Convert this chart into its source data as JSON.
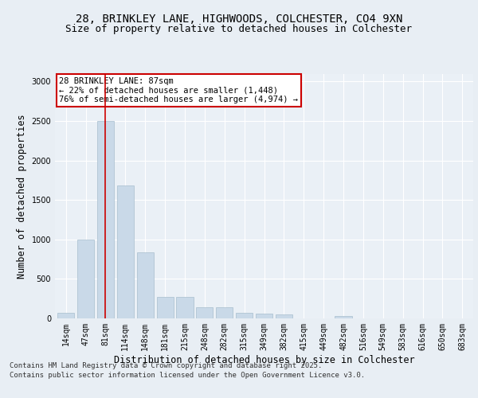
{
  "title_line1": "28, BRINKLEY LANE, HIGHWOODS, COLCHESTER, CO4 9XN",
  "title_line2": "Size of property relative to detached houses in Colchester",
  "xlabel": "Distribution of detached houses by size in Colchester",
  "ylabel": "Number of detached properties",
  "categories": [
    "14sqm",
    "47sqm",
    "81sqm",
    "114sqm",
    "148sqm",
    "181sqm",
    "215sqm",
    "248sqm",
    "282sqm",
    "315sqm",
    "349sqm",
    "382sqm",
    "415sqm",
    "449sqm",
    "482sqm",
    "516sqm",
    "549sqm",
    "583sqm",
    "616sqm",
    "650sqm",
    "683sqm"
  ],
  "values": [
    70,
    1000,
    2500,
    1680,
    840,
    270,
    270,
    140,
    140,
    75,
    60,
    50,
    0,
    0,
    30,
    0,
    0,
    0,
    0,
    0,
    0
  ],
  "bar_color": "#c9d9e8",
  "bar_edgecolor": "#a8bece",
  "vline_x_index": 2,
  "vline_color": "#cc0000",
  "annotation_text": "28 BRINKLEY LANE: 87sqm\n← 22% of detached houses are smaller (1,448)\n76% of semi-detached houses are larger (4,974) →",
  "annotation_box_color": "#ffffff",
  "annotation_box_edgecolor": "#cc0000",
  "ylim": [
    0,
    3100
  ],
  "yticks": [
    0,
    500,
    1000,
    1500,
    2000,
    2500,
    3000
  ],
  "footer_line1": "Contains HM Land Registry data © Crown copyright and database right 2025.",
  "footer_line2": "Contains public sector information licensed under the Open Government Licence v3.0.",
  "bg_color": "#e8eef4",
  "plot_bg_color": "#eaf0f6",
  "grid_color": "#ffffff",
  "title_fontsize": 10,
  "subtitle_fontsize": 9,
  "axis_label_fontsize": 8.5,
  "tick_fontsize": 7,
  "footer_fontsize": 6.5,
  "annotation_fontsize": 7.5
}
